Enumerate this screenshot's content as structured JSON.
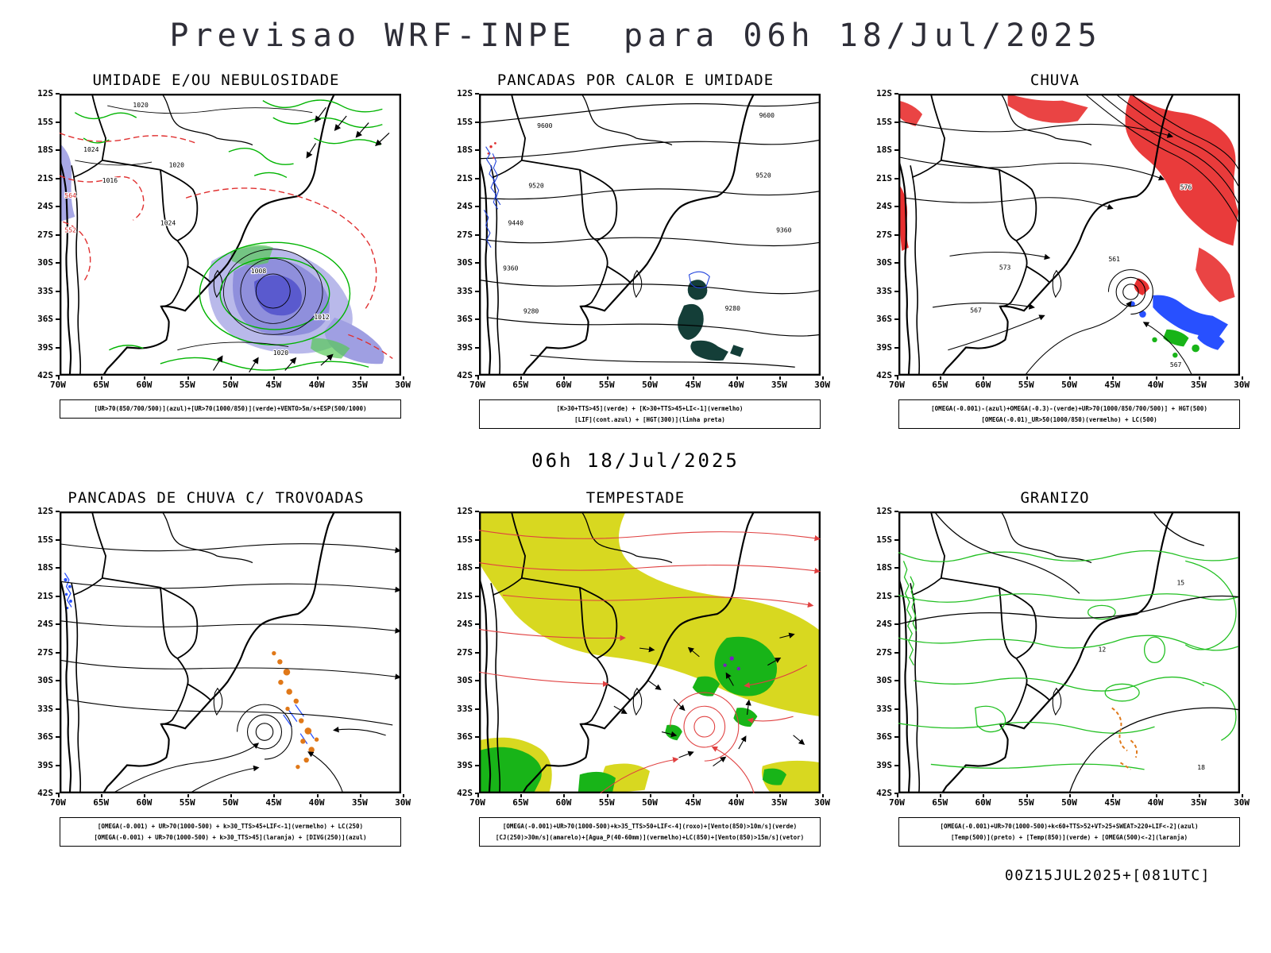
{
  "title": "Previsao WRF-INPE  para 06h 18/Jul/2025",
  "subtitle": "06h 18/Jul/2025",
  "footer": "00Z15JUL2025+[081UTC]",
  "axes": {
    "lat": [
      "12S",
      "15S",
      "18S",
      "21S",
      "24S",
      "27S",
      "30S",
      "33S",
      "36S",
      "39S",
      "42S"
    ],
    "lon": [
      "70W",
      "65W",
      "60W",
      "55W",
      "50W",
      "45W",
      "40W",
      "35W",
      "30W"
    ]
  },
  "legend_colors": {
    "azul": "#2850ff",
    "verde": "#00b400",
    "vermelho": "#e03030",
    "laranja": "#e07818",
    "roxo": "#7a1fc0",
    "amarelo": "#d8d820",
    "preto": "#000000",
    "umidade_fill": "#8f8fdc",
    "convective_fill": "#143e38"
  },
  "panels": [
    {
      "id": "umidade",
      "title": "UMIDADE E/OU NEBULOSIDADE",
      "captions": [
        "[UR>70(850/700/500)](azul)+[UR>70(1000/850)](verde)+VENTO>5m/s+ESP(500/1000)"
      ],
      "contour_labels": [
        "1020",
        "1016",
        "1024",
        "1020",
        "1024",
        "1008",
        "1012",
        "1020",
        "564",
        "552"
      ]
    },
    {
      "id": "pancadas-calor-umidade",
      "title": "PANCADAS POR CALOR E UMIDADE",
      "captions": [
        "[K>30+TTS>45](verde) + [K>30+TTS>45+LI<-1](vermelho)",
        "[LIF](cont.azul) + [HGT(300)](linha preta)"
      ],
      "contour_labels": [
        "9600",
        "9600",
        "9520",
        "9520",
        "9440",
        "9360",
        "9360",
        "9280",
        "9280"
      ]
    },
    {
      "id": "chuva",
      "title": "CHUVA",
      "captions": [
        "[OMEGA(-0.001)-(azul)+OMEGA(-0.3)-(verde)+UR>70(1000/850/700/500)] + HGT(500)",
        "[OMEGA(-0.01)_UR>50(1000/850)(vermelho) + LC(500)"
      ],
      "contour_labels": [
        "576",
        "573",
        "567",
        "561",
        "567"
      ]
    },
    {
      "id": "pancadas-trovoadas",
      "title": "PANCADAS DE CHUVA C/ TROVOADAS",
      "captions": [
        "[OMEGA(-0.001) + UR>70(1000-500) + k>30_TTS>45+LIF<-1](vermelho) + LC(250)",
        "[OMEGA(-0.001) + UR>70(1000-500) + k>30_TTS>45](laranja) + [DIVG(250)](azul)"
      ],
      "contour_labels": []
    },
    {
      "id": "tempestade",
      "title": "TEMPESTADE",
      "captions": [
        "[OMEGA(-0.001)+UR>70(1000-500)+k>35_TTS>50+LIF<-4](roxo)+[Vento(850)>10m/s](verde)",
        "[CJ(250)>30m/s](amarelo)+[Agua_P(40-60mm)](vermelho)+LC(850)+[Vento(850)>15m/s](vetor)"
      ],
      "contour_labels": []
    },
    {
      "id": "granizo",
      "title": "GRANIZO",
      "captions": [
        "[OMEGA(-0.001)+UR>70(1000-500)+k<60+TTS>52+VT>25+SWEAT>220+LIF<-2](azul)",
        "[Temp(500)](preto) + [Temp(850)](verde) + [OMEGA(500)<-2](laranja)"
      ],
      "contour_labels": [
        "12",
        "15",
        "18"
      ]
    }
  ]
}
